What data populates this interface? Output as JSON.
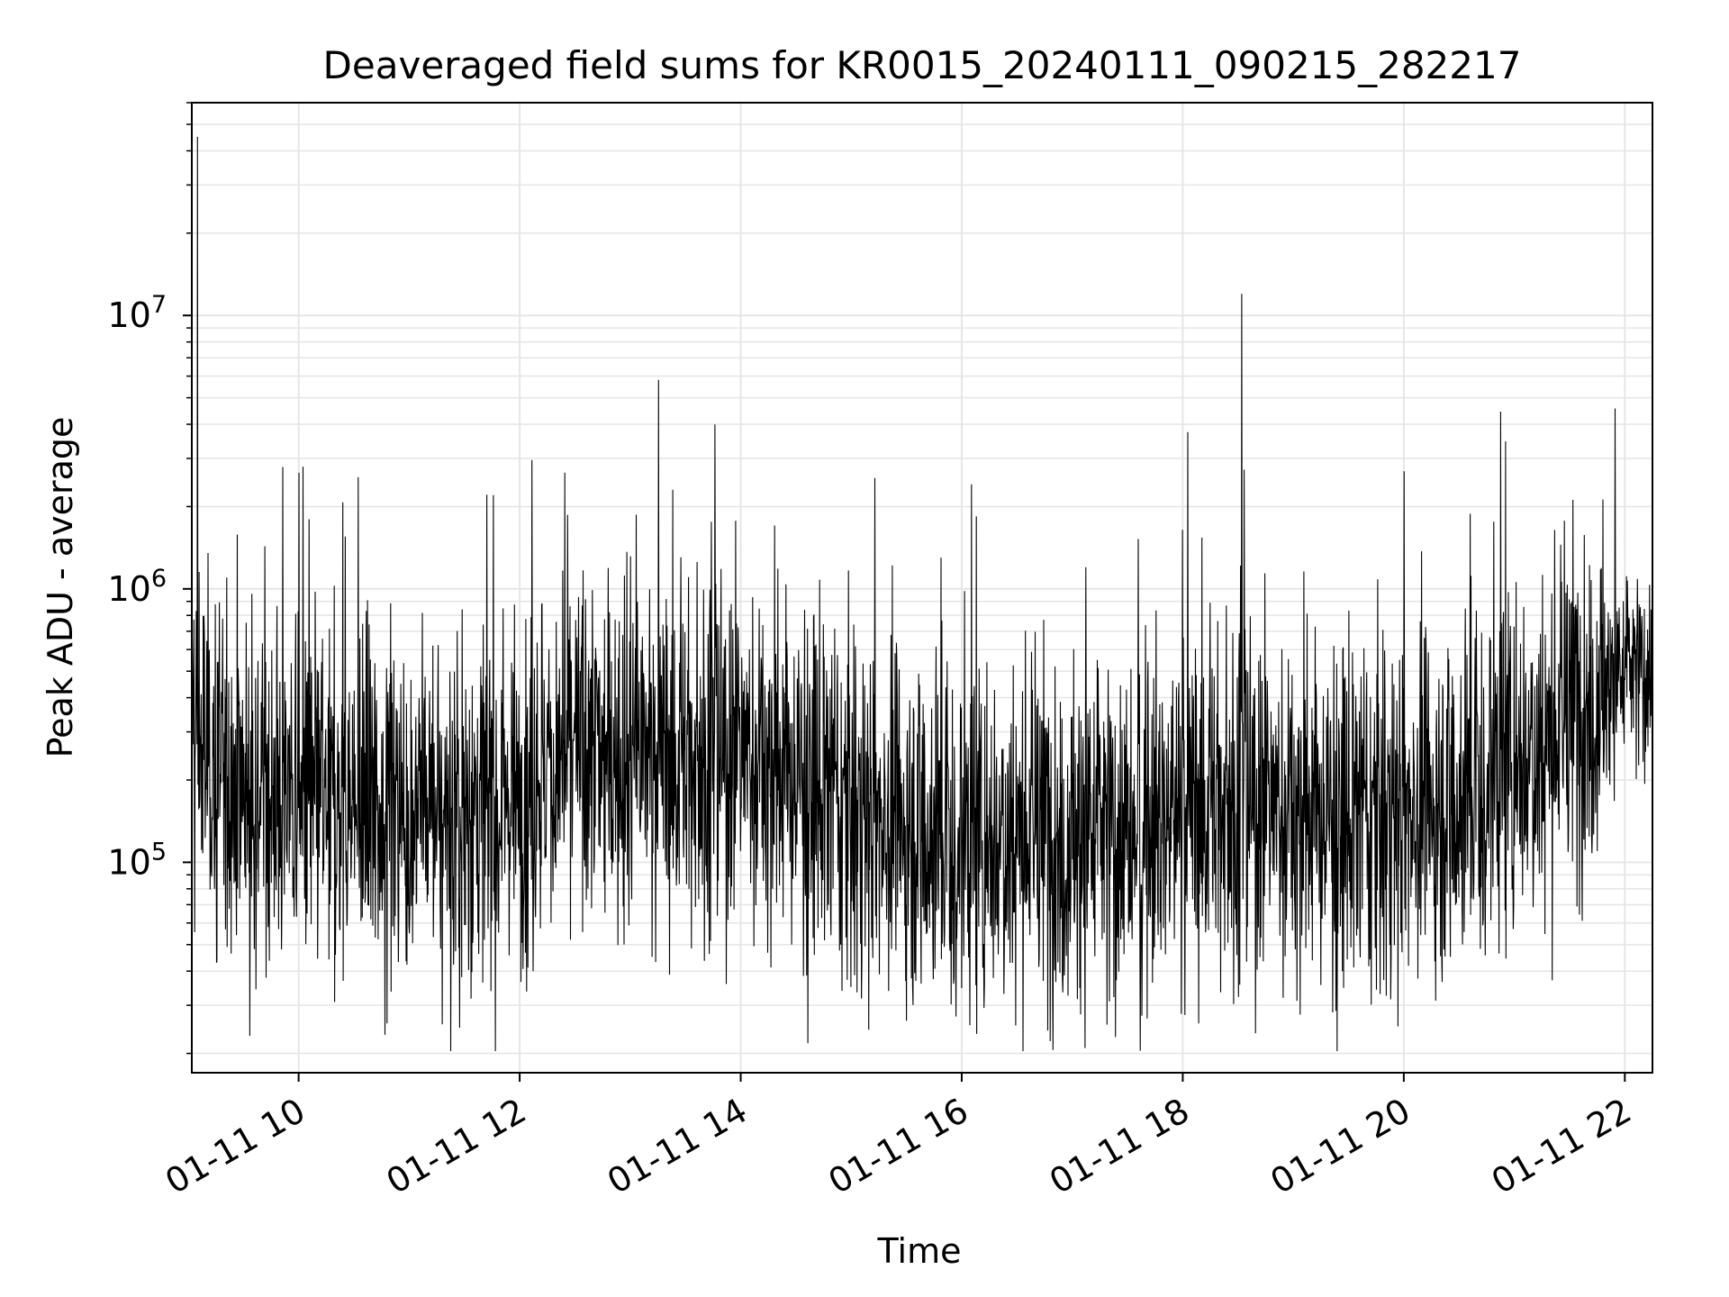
{
  "chart_data": {
    "type": "line",
    "title": "Deaveraged field sums for KR0015_20240111_090215_282217",
    "xlabel": "Time",
    "ylabel": "Peak ADU - average",
    "y_scale": "log",
    "ylim": [
      17000,
      60000000
    ],
    "xlim": [
      "2024-01-11 09:02",
      "2024-01-11 22:15"
    ],
    "x_tick_labels": [
      "01-11 10",
      "01-11 12",
      "01-11 14",
      "01-11 16",
      "01-11 18",
      "01-11 20",
      "01-11 22"
    ],
    "y_tick_labels": [
      {
        "base": "10",
        "exp": "5"
      },
      {
        "base": "10",
        "exp": "6"
      },
      {
        "base": "10",
        "exp": "7"
      }
    ],
    "grid": true,
    "line_color": "#000000",
    "grid_color": "#e6e6e6",
    "series": [
      {
        "note_points": "points below are [time, value]; the plotted trace is dense noise around these anchors",
        "anchors": [
          [
            "2024-01-11 09:02",
            350000
          ],
          [
            "2024-01-11 09:05",
            45000000
          ],
          [
            "2024-01-11 09:08",
            250000
          ],
          [
            "2024-01-11 09:30",
            200000
          ],
          [
            "2024-01-11 10:00",
            170000
          ],
          [
            "2024-01-11 10:30",
            150000
          ],
          [
            "2024-01-11 11:00",
            160000
          ],
          [
            "2024-01-11 11:30",
            150000
          ],
          [
            "2024-01-11 12:00",
            190000
          ],
          [
            "2024-01-11 12:30",
            250000
          ],
          [
            "2024-01-11 13:00",
            260000
          ],
          [
            "2024-01-11 13:30",
            240000
          ],
          [
            "2024-01-11 14:00",
            250000
          ],
          [
            "2024-01-11 14:30",
            200000
          ],
          [
            "2024-01-11 15:00",
            160000
          ],
          [
            "2024-01-11 15:30",
            140000
          ],
          [
            "2024-01-11 16:00",
            120000
          ],
          [
            "2024-01-11 16:30",
            140000
          ],
          [
            "2024-01-11 17:00",
            120000
          ],
          [
            "2024-01-11 17:30",
            130000
          ],
          [
            "2024-01-11 18:00",
            160000
          ],
          [
            "2024-01-11 18:30",
            170000
          ],
          [
            "2024-01-11 18:32",
            12000000
          ],
          [
            "2024-01-11 19:00",
            150000
          ],
          [
            "2024-01-11 19:30",
            140000
          ],
          [
            "2024-01-11 20:00",
            160000
          ],
          [
            "2024-01-11 20:30",
            170000
          ],
          [
            "2024-01-11 21:00",
            250000
          ],
          [
            "2024-01-11 21:30",
            350000
          ],
          [
            "2024-01-11 22:00",
            480000
          ],
          [
            "2024-01-11 22:15",
            520000
          ]
        ]
      }
    ]
  }
}
